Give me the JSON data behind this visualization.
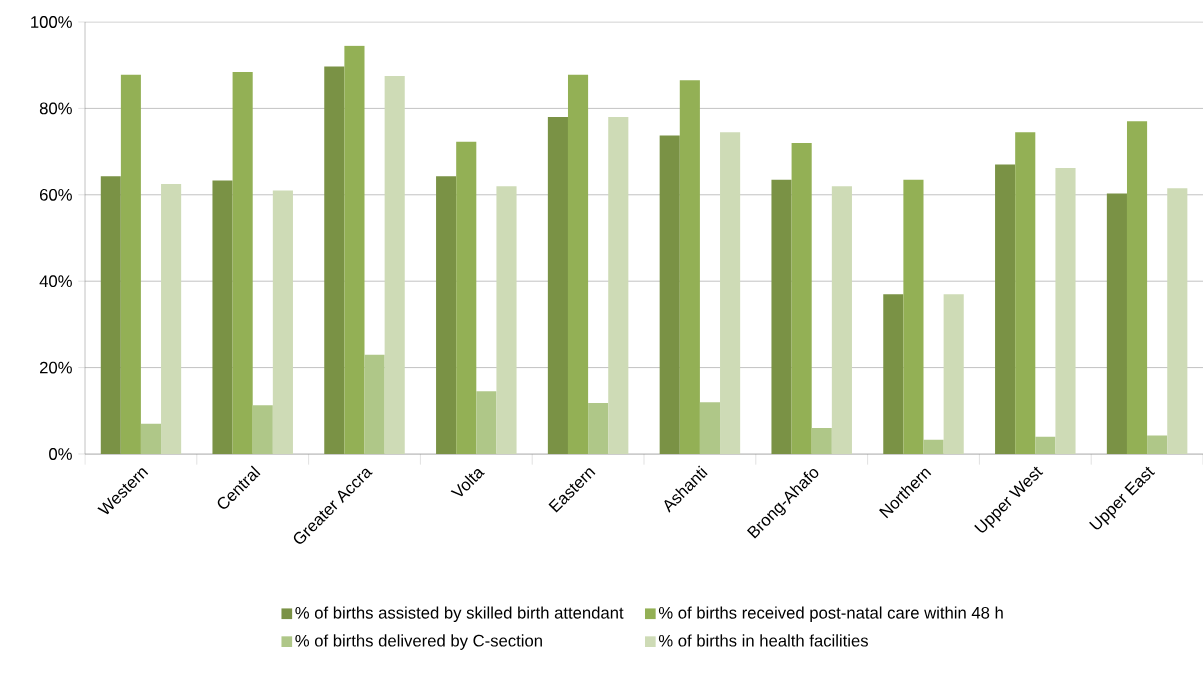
{
  "chart_data": {
    "type": "bar",
    "categories": [
      "Western",
      "Central",
      "Greater Accra",
      "Volta",
      "Eastern",
      "Ashanti",
      "Brong-Ahafo",
      "Northern",
      "Upper West",
      "Upper East"
    ],
    "series": [
      {
        "name": "% of births assisted by skilled birth attendant",
        "color": "#7a9245",
        "values": [
          64.3,
          63.3,
          89.7,
          64.3,
          78,
          73.7,
          63.5,
          37,
          67,
          60.3
        ]
      },
      {
        "name": "% of births received post-natal care within 48 h",
        "color": "#93b055",
        "values": [
          87.8,
          88.4,
          94.5,
          72.3,
          87.8,
          86.5,
          72,
          63.5,
          74.5,
          77
        ]
      },
      {
        "name": "% of births delivered by C-section",
        "color": "#afc788",
        "values": [
          7,
          11.3,
          23,
          14.5,
          11.8,
          12,
          6,
          3.3,
          4,
          4.3
        ]
      },
      {
        "name": "% of births in health facilities",
        "color": "#cedbb6",
        "values": [
          62.5,
          61,
          87.5,
          62,
          78,
          74.5,
          62,
          37,
          66.2,
          61.5
        ]
      }
    ],
    "ylim": [
      0,
      100
    ],
    "yticks": [
      {
        "value": 0,
        "label": "0%"
      },
      {
        "value": 20,
        "label": "20%"
      },
      {
        "value": 40,
        "label": "40%"
      },
      {
        "value": 60,
        "label": "60%"
      },
      {
        "value": 80,
        "label": "80%"
      },
      {
        "value": 100,
        "label": "100%"
      }
    ],
    "grid": "y",
    "legend": "bottom"
  }
}
